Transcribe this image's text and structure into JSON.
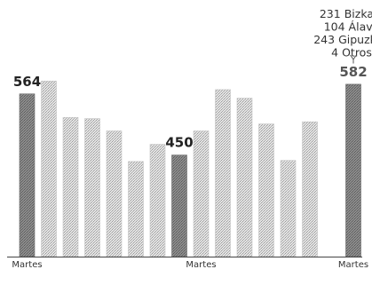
{
  "chart_data": {
    "type": "bar",
    "categories": [
      "Martes",
      "",
      "",
      "",
      "",
      "",
      "",
      "",
      "Martes",
      "",
      "",
      "",
      "",
      "",
      "",
      "Martes"
    ],
    "values": [
      564,
      588,
      520,
      518,
      495,
      438,
      470,
      450,
      495,
      572,
      556,
      508,
      440,
      512,
      0,
      582
    ],
    "visible_values": [
      564,
      588,
      520,
      518,
      495,
      438,
      470,
      450,
      495,
      572,
      556,
      508,
      440,
      512,
      null,
      582
    ],
    "data_labels": [
      {
        "index": 0,
        "text": "564"
      },
      {
        "index": 7,
        "text": "450"
      },
      {
        "index": 15,
        "text": "582"
      }
    ],
    "breakdown": [
      {
        "value": "231",
        "name": "Bizkaia"
      },
      {
        "value": "104",
        "name": "Álava"
      },
      {
        "value": "243",
        "name": "Gipuzkoa"
      },
      {
        "value": "4",
        "name": "Otros"
      }
    ],
    "ylim": [
      0,
      600
    ],
    "grid": false,
    "colors": {
      "bar_light": "#d6d6d6",
      "bar_dark": "#8a8a8a",
      "highlight_bar": "#6e6e6e",
      "axis": "#444444"
    }
  }
}
